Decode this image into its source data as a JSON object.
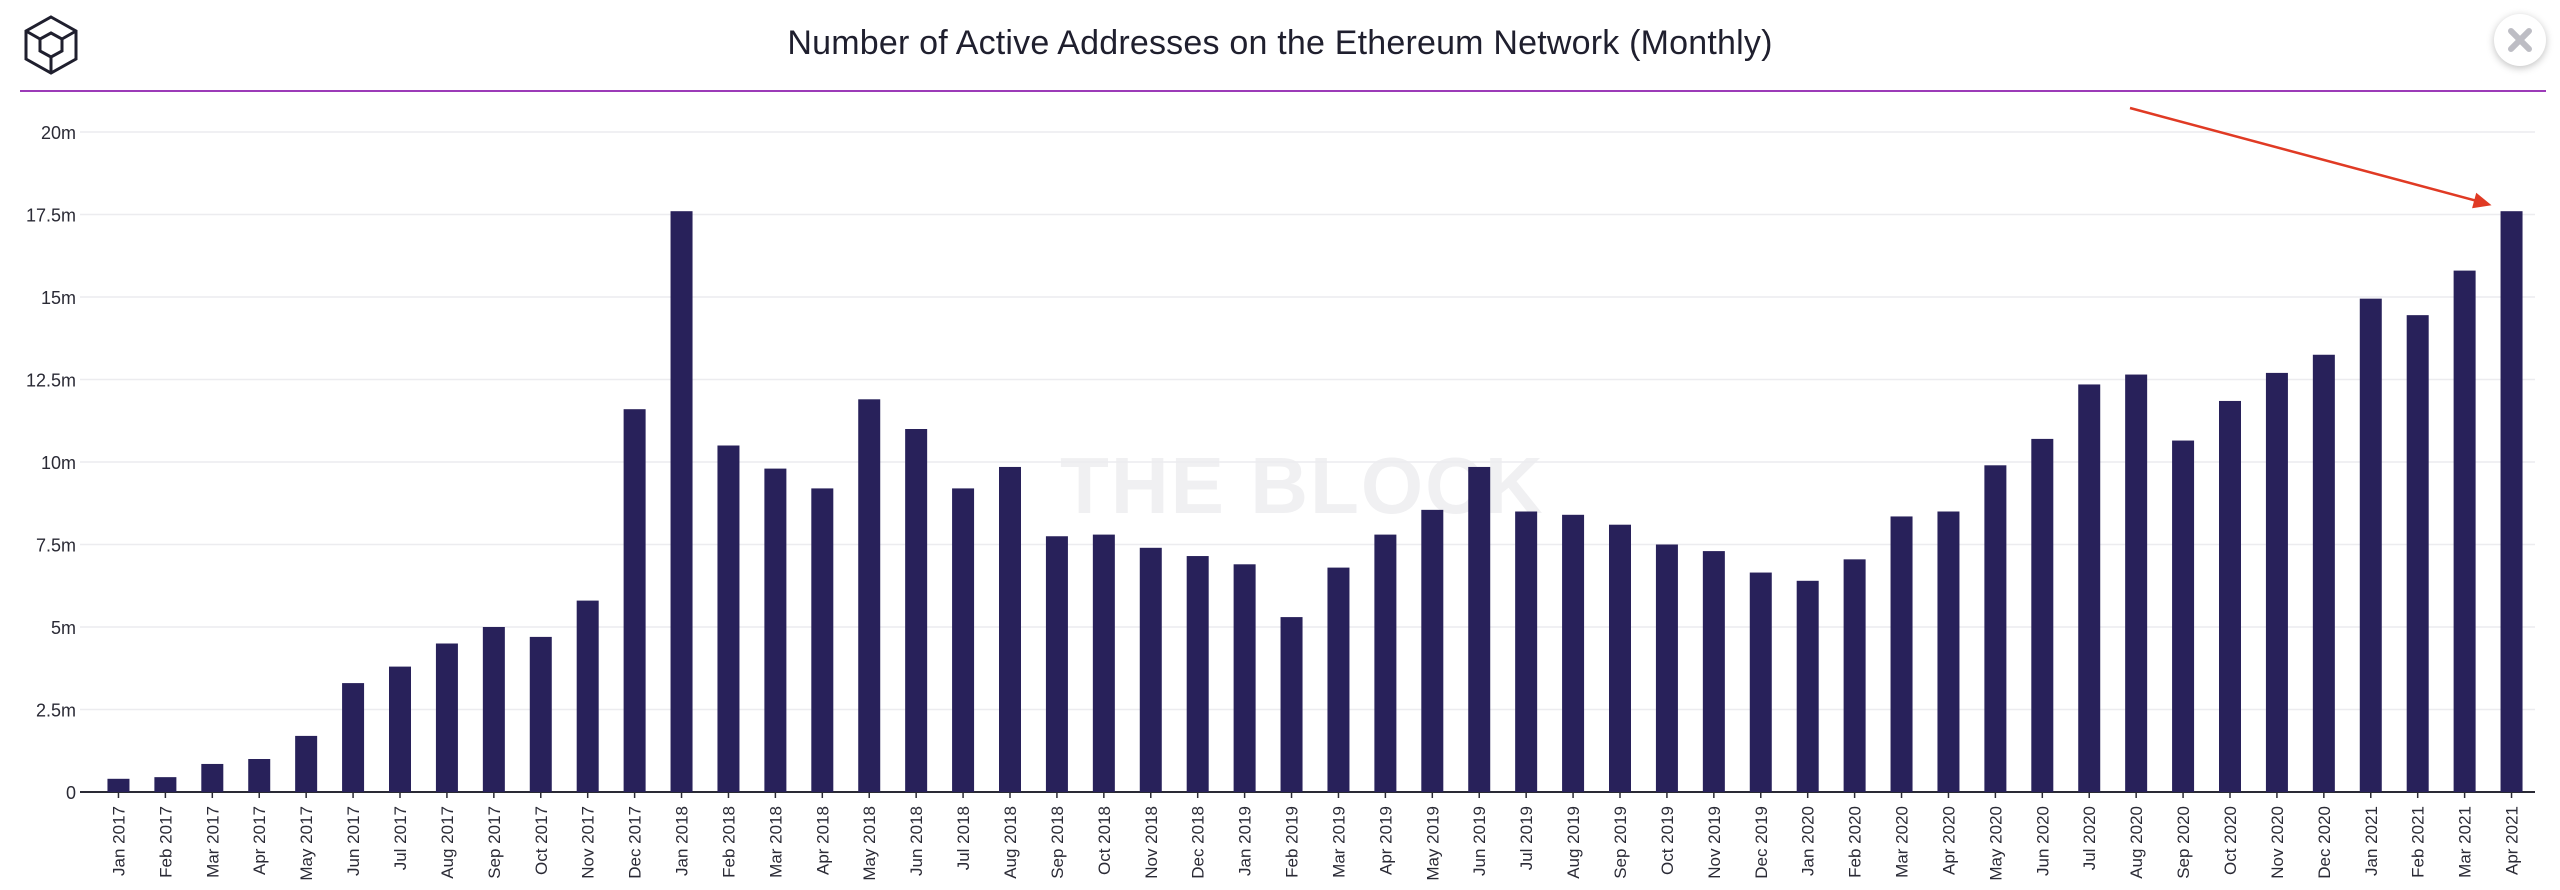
{
  "title": "Number of Active Addresses on the Ethereum Network (Monthly)",
  "watermark": "THE BLOCK",
  "icons": {
    "logo": "cube-logo-icon",
    "close": "close-icon"
  },
  "colors": {
    "bar": "#28215a",
    "accent_rule": "#9c3bb8",
    "arrow": "#e03a24",
    "grid": "#ececef"
  },
  "chart_data": {
    "type": "bar",
    "title": "Number of Active Addresses on the Ethereum Network (Monthly)",
    "xlabel": "",
    "ylabel": "",
    "ylim": [
      0,
      20000000
    ],
    "yticks": [
      0,
      2500000,
      5000000,
      7500000,
      10000000,
      12500000,
      15000000,
      17500000,
      20000000
    ],
    "ytick_labels": [
      "0",
      "2.5m",
      "5m",
      "7.5m",
      "10m",
      "12.5m",
      "15m",
      "17.5m",
      "20m"
    ],
    "grid": true,
    "categories": [
      "Jan 2017",
      "Feb 2017",
      "Mar 2017",
      "Apr 2017",
      "May 2017",
      "Jun 2017",
      "Jul 2017",
      "Aug 2017",
      "Sep 2017",
      "Oct 2017",
      "Nov 2017",
      "Dec 2017",
      "Jan 2018",
      "Feb 2018",
      "Mar 2018",
      "Apr 2018",
      "May 2018",
      "Jun 2018",
      "Jul 2018",
      "Aug 2018",
      "Sep 2018",
      "Oct 2018",
      "Nov 2018",
      "Dec 2018",
      "Jan 2019",
      "Feb 2019",
      "Mar 2019",
      "Apr 2019",
      "May 2019",
      "Jun 2019",
      "Jul 2019",
      "Aug 2019",
      "Sep 2019",
      "Oct 2019",
      "Nov 2019",
      "Dec 2019",
      "Jan 2020",
      "Feb 2020",
      "Mar 2020",
      "Apr 2020",
      "May 2020",
      "Jun 2020",
      "Jul 2020",
      "Aug 2020",
      "Sep 2020",
      "Oct 2020",
      "Nov 2020",
      "Dec 2020",
      "Jan 2021",
      "Feb 2021",
      "Mar 2021",
      "Apr 2021"
    ],
    "values": [
      400000,
      450000,
      850000,
      1000000,
      1700000,
      3300000,
      3800000,
      4500000,
      5000000,
      4700000,
      5800000,
      11600000,
      17600000,
      10500000,
      9800000,
      9200000,
      11900000,
      11000000,
      9200000,
      9850000,
      7750000,
      7800000,
      7400000,
      7150000,
      6900000,
      5300000,
      6800000,
      7800000,
      8550000,
      9850000,
      8500000,
      8400000,
      8100000,
      7500000,
      7300000,
      6650000,
      6400000,
      7050000,
      8350000,
      8500000,
      9900000,
      10700000,
      12350000,
      12650000,
      10650000,
      11850000,
      12700000,
      13250000,
      14950000,
      14450000,
      15800000,
      17600000
    ],
    "annotation": {
      "type": "arrow",
      "target_category": "Apr 2021"
    }
  }
}
